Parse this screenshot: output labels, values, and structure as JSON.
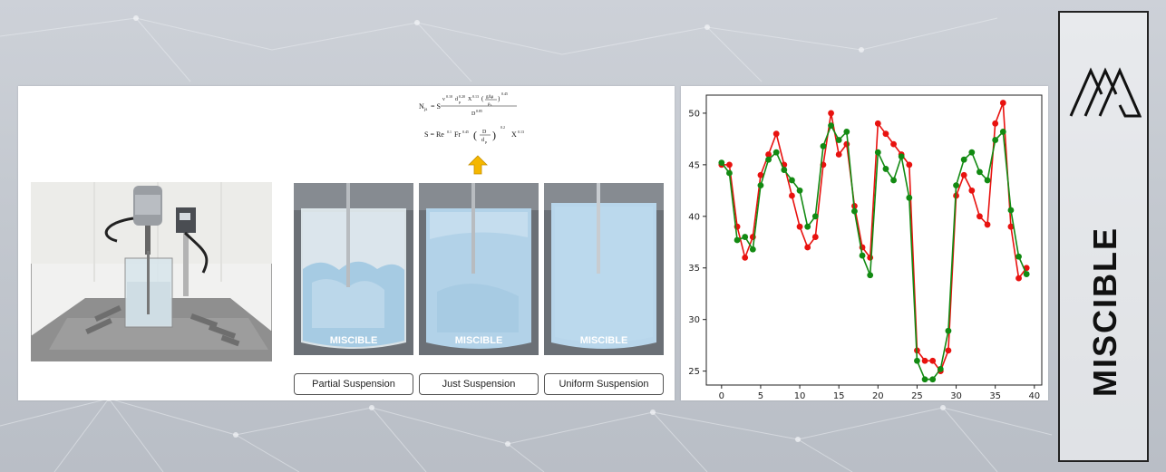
{
  "suspension_labels": [
    "Partial Suspension",
    "Just Suspension",
    "Uniform Suspension"
  ],
  "beaker_watermark": "MISCIBLE",
  "brand": {
    "name": "MISCIBLE"
  },
  "colors": {
    "series_red": "#e8120f",
    "series_green": "#128a12",
    "arrow": "#f5b700"
  },
  "chart_data": {
    "type": "line",
    "x": [
      0,
      1,
      2,
      3,
      4,
      5,
      6,
      7,
      8,
      9,
      10,
      11,
      12,
      13,
      14,
      15,
      16,
      17,
      18,
      19,
      20,
      21,
      22,
      23,
      24,
      25,
      26,
      27,
      28,
      29,
      30,
      31,
      32,
      33,
      34,
      35,
      36,
      37,
      38,
      39
    ],
    "series": [
      {
        "color": "#e8120f",
        "values": [
          45,
          45,
          39,
          36,
          38,
          44,
          46,
          48,
          45,
          42,
          39,
          37,
          38,
          45,
          50,
          46,
          47,
          41,
          37,
          36,
          49,
          48,
          47,
          46,
          45,
          27,
          26,
          26,
          25,
          27,
          42,
          44,
          42.5,
          40,
          39.2,
          49,
          51,
          39,
          34,
          35
        ]
      },
      {
        "color": "#128a12",
        "values": [
          45.2,
          44.2,
          37.7,
          38,
          36.8,
          43,
          45.5,
          46.2,
          44.5,
          43.5,
          42.5,
          39,
          40,
          46.8,
          48.8,
          47.4,
          48.2,
          40.5,
          36.2,
          34.3,
          46.2,
          44.6,
          43.5,
          45.8,
          41.8,
          26,
          24.2,
          24.2,
          25.2,
          28.9,
          43,
          45.5,
          46.2,
          44.3,
          43.5,
          47.4,
          48.2,
          40.6,
          36.1,
          34.4
        ]
      }
    ],
    "xlim": [
      -1.95,
      40.95
    ],
    "ylim": [
      23.65,
      51.75
    ],
    "xticks": [
      0,
      5,
      10,
      15,
      20,
      25,
      30,
      35,
      40
    ],
    "yticks": [
      25,
      30,
      35,
      40,
      45,
      50
    ],
    "grid": false,
    "legend": "none"
  }
}
